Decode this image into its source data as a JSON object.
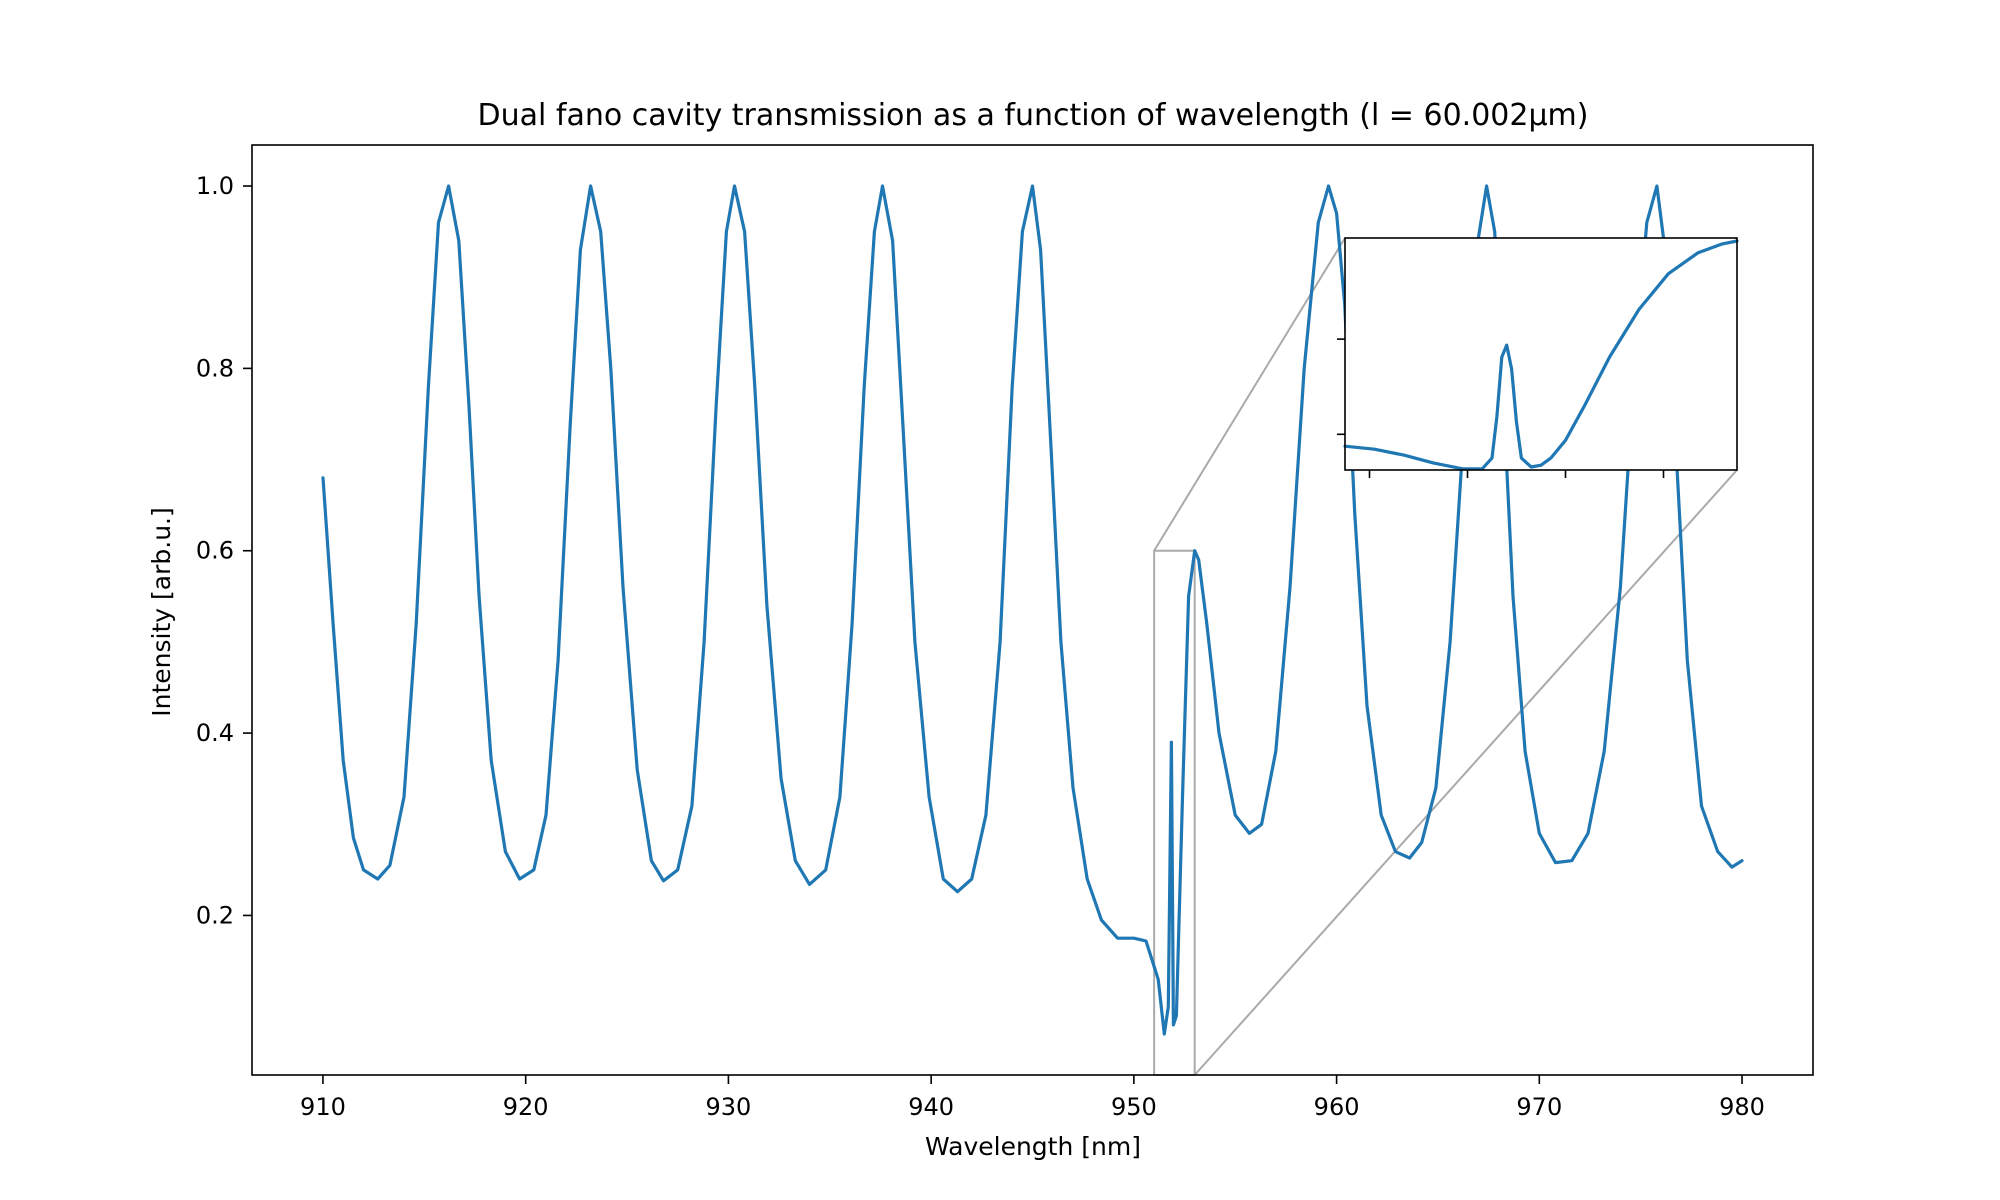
{
  "chart_data": {
    "type": "line",
    "title": "Dual fano cavity transmission as a function of wavelength (l = 60.002μm)",
    "xlabel": "Wavelength [nm]",
    "ylabel": "Intensity [arb.u.]",
    "xlim": [
      906.5,
      983.5
    ],
    "ylim": [
      0.025,
      1.045
    ],
    "xticks": [
      910,
      920,
      930,
      940,
      950,
      960,
      970,
      980
    ],
    "yticks": [
      0.2,
      0.4,
      0.6,
      0.8,
      1.0
    ],
    "xtick_labels": [
      "910",
      "920",
      "930",
      "940",
      "950",
      "960",
      "970",
      "980"
    ],
    "ytick_labels": [
      "0.2",
      "0.4",
      "0.6",
      "0.8",
      "1.0"
    ],
    "grid": false,
    "series": [
      {
        "color": "#1f77b4",
        "x": [
          910.0,
          910.5,
          911.0,
          911.5,
          912.0,
          912.7,
          913.3,
          914.0,
          914.6,
          915.2,
          915.7,
          916.2,
          916.7,
          917.2,
          917.7,
          918.3,
          919.0,
          919.7,
          920.4,
          921.0,
          921.6,
          922.2,
          922.7,
          923.2,
          923.7,
          924.2,
          924.8,
          925.5,
          926.2,
          926.8,
          927.5,
          928.2,
          928.8,
          929.4,
          929.9,
          930.3,
          930.8,
          931.3,
          931.9,
          932.6,
          933.3,
          934.0,
          934.8,
          935.5,
          936.1,
          936.7,
          937.2,
          937.6,
          938.1,
          938.6,
          939.2,
          939.9,
          940.6,
          941.3,
          942.0,
          942.7,
          943.4,
          944.0,
          944.5,
          945.0,
          945.4,
          945.9,
          946.4,
          947.0,
          947.7,
          948.4,
          949.2,
          950.0,
          950.6,
          951.2,
          951.5,
          951.7,
          951.85,
          951.95,
          952.1,
          952.4,
          952.7,
          953.0,
          953.2,
          953.6,
          954.2,
          955.0,
          955.7,
          956.3,
          957.0,
          957.7,
          958.4,
          959.1,
          959.6,
          960.0,
          960.4,
          960.9,
          961.5,
          962.2,
          962.9,
          963.6,
          964.2,
          964.9,
          965.6,
          966.3,
          966.9,
          967.4,
          967.8,
          968.2,
          968.7,
          969.3,
          970.0,
          970.8,
          971.6,
          972.4,
          973.2,
          974.0,
          974.7,
          975.3,
          975.8,
          976.2,
          976.7,
          977.3,
          978.0,
          978.8,
          979.5,
          980.0
        ],
        "y": [
          0.68,
          0.52,
          0.37,
          0.285,
          0.25,
          0.24,
          0.255,
          0.33,
          0.52,
          0.78,
          0.96,
          1.0,
          0.94,
          0.76,
          0.55,
          0.37,
          0.27,
          0.24,
          0.25,
          0.31,
          0.48,
          0.74,
          0.93,
          1.0,
          0.95,
          0.8,
          0.56,
          0.36,
          0.26,
          0.238,
          0.25,
          0.32,
          0.5,
          0.76,
          0.95,
          1.0,
          0.95,
          0.78,
          0.54,
          0.35,
          0.26,
          0.234,
          0.25,
          0.33,
          0.52,
          0.78,
          0.95,
          1.0,
          0.94,
          0.74,
          0.5,
          0.33,
          0.24,
          0.226,
          0.24,
          0.31,
          0.5,
          0.78,
          0.95,
          1.0,
          0.93,
          0.72,
          0.5,
          0.34,
          0.24,
          0.195,
          0.175,
          0.175,
          0.172,
          0.13,
          0.07,
          0.1,
          0.39,
          0.08,
          0.09,
          0.33,
          0.55,
          0.6,
          0.59,
          0.52,
          0.4,
          0.31,
          0.29,
          0.3,
          0.38,
          0.56,
          0.8,
          0.96,
          1.0,
          0.97,
          0.87,
          0.64,
          0.43,
          0.31,
          0.27,
          0.263,
          0.28,
          0.34,
          0.5,
          0.74,
          0.93,
          1.0,
          0.95,
          0.78,
          0.55,
          0.38,
          0.29,
          0.258,
          0.26,
          0.29,
          0.38,
          0.56,
          0.8,
          0.96,
          1.0,
          0.93,
          0.73,
          0.48,
          0.32,
          0.27,
          0.253,
          0.26
        ]
      }
    ],
    "zoom_region": {
      "xlim": [
        951.0,
        953.0
      ],
      "ylim": [
        0.025,
        0.6
      ]
    },
    "inset": {
      "xlim": [
        951.5,
        952.3
      ],
      "ylim": [
        0.06,
        0.45
      ],
      "xticks": [
        951.55,
        951.75,
        951.95,
        952.15
      ],
      "yticks": [
        0.12,
        0.28
      ],
      "series": [
        {
          "color": "#1f77b4",
          "x": [
            951.5,
            951.56,
            951.62,
            951.68,
            951.74,
            951.78,
            951.8,
            951.81,
            951.82,
            951.83,
            951.84,
            951.85,
            951.86,
            951.88,
            951.9,
            951.92,
            951.95,
            951.99,
            952.04,
            952.1,
            952.16,
            952.22,
            952.27,
            952.3
          ],
          "y": [
            0.1,
            0.095,
            0.085,
            0.072,
            0.062,
            0.062,
            0.08,
            0.15,
            0.25,
            0.27,
            0.23,
            0.14,
            0.08,
            0.065,
            0.068,
            0.08,
            0.11,
            0.17,
            0.25,
            0.33,
            0.39,
            0.425,
            0.44,
            0.445
          ]
        }
      ]
    }
  }
}
